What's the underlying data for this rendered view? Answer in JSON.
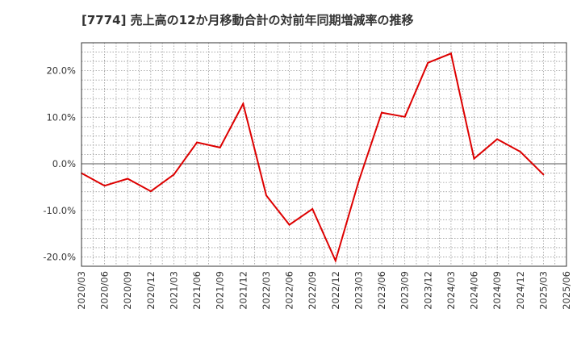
{
  "chart_data": {
    "type": "line",
    "title": "[7774]  売上高の12か月移動合計の対前年同期増減率の推移",
    "xlabel": "",
    "ylabel": "",
    "ylim": [
      -22,
      26
    ],
    "grid": true,
    "y_ticks": [
      20,
      10,
      0,
      -10,
      -20
    ],
    "y_tick_labels": [
      "20.0%",
      "10.0%",
      "0.0%",
      "-10.0%",
      "-20.0%"
    ],
    "categories": [
      "2020/03",
      "2020/06",
      "2020/09",
      "2020/12",
      "2021/03",
      "2021/06",
      "2021/09",
      "2021/12",
      "2022/03",
      "2022/06",
      "2022/09",
      "2022/12",
      "2023/03",
      "2023/06",
      "2023/09",
      "2023/12",
      "2024/03",
      "2024/06",
      "2024/09",
      "2024/12",
      "2025/03",
      "2025/06"
    ],
    "series": [
      {
        "name": "増減率",
        "color": "#dd0000",
        "values": [
          -2.0,
          -4.7,
          -3.2,
          -5.9,
          -2.3,
          4.6,
          3.5,
          12.9,
          -6.8,
          -13.1,
          -9.7,
          -20.8,
          -3.8,
          11.0,
          10.1,
          21.7,
          23.7,
          1.1,
          5.3,
          2.6,
          -2.3,
          null
        ]
      }
    ]
  }
}
